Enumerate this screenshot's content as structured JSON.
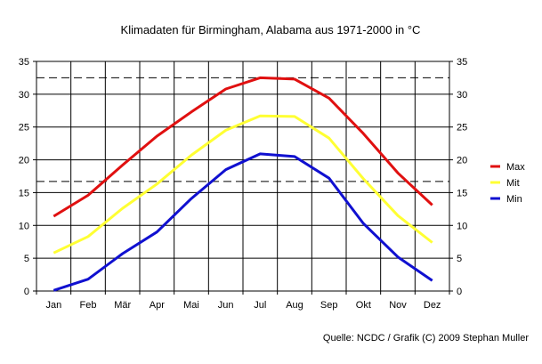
{
  "chart_data": {
    "type": "line",
    "title": "Klimadaten für Birmingham, Alabama aus 1971-2000 in °C",
    "categories": [
      "Jan",
      "Feb",
      "Mär",
      "Apr",
      "Mai",
      "Jun",
      "Jul",
      "Aug",
      "Sep",
      "Okt",
      "Nov",
      "Dez"
    ],
    "ylim": [
      0,
      35
    ],
    "yticks": [
      "0",
      "5",
      "10",
      "15",
      "20",
      "25",
      "30",
      "35"
    ],
    "grid": true,
    "legend_position": "right",
    "reference_lines": [
      32.5,
      16.7,
      0
    ],
    "series": [
      {
        "name": "Max",
        "color": "#e01010",
        "values": [
          11.4,
          14.6,
          19.2,
          23.6,
          27.3,
          30.8,
          32.5,
          32.3,
          29.4,
          24.0,
          18.0,
          13.1
        ]
      },
      {
        "name": "Mit",
        "color": "#ffff33",
        "values": [
          5.8,
          8.3,
          12.6,
          16.3,
          20.7,
          24.5,
          26.7,
          26.6,
          23.3,
          17.1,
          11.5,
          7.4
        ]
      },
      {
        "name": "Min",
        "color": "#1010d0",
        "values": [
          0.1,
          1.8,
          5.7,
          9.0,
          14.1,
          18.5,
          20.9,
          20.5,
          17.2,
          10.3,
          5.2,
          1.6
        ]
      }
    ]
  },
  "footer": {
    "source": "Quelle: NCDC / Grafik (C) 2009 Stephan Muller"
  }
}
